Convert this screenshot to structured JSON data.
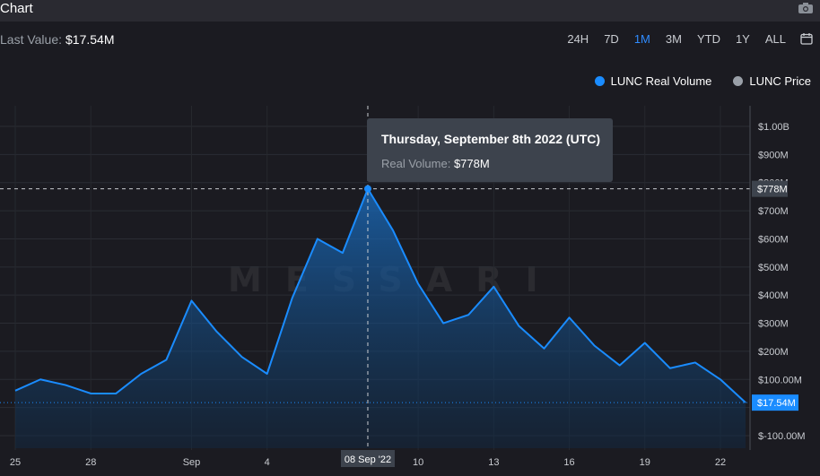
{
  "header": {
    "title": "Chart",
    "camera_icon": "camera-icon"
  },
  "summary": {
    "label": "Last Value:",
    "value": "$17.54M"
  },
  "ranges": [
    "24H",
    "7D",
    "1M",
    "3M",
    "YTD",
    "1Y",
    "ALL"
  ],
  "active_range": "1M",
  "calendar_icon": "calendar-icon",
  "legend": [
    {
      "label": "LUNC Real Volume",
      "color": "#1a8cff"
    },
    {
      "label": "LUNC Price",
      "color": "#9aa0a8"
    }
  ],
  "tooltip": {
    "date": "Thursday, September 8th 2022 (UTC)",
    "label": "Real Volume:",
    "value": "$778M"
  },
  "crosshair": {
    "x_label": "08 Sep '22",
    "y_label": "$778M"
  },
  "last_value_tag": "$17.54M",
  "watermark": "MESSARI",
  "chart_data": {
    "type": "area",
    "series": [
      {
        "name": "LUNC Real Volume",
        "color": "#1a8cff",
        "x": [
          "Aug 25",
          "Aug 26",
          "Aug 27",
          "Aug 28",
          "Aug 29",
          "Aug 30",
          "Aug 31",
          "Sep 1",
          "Sep 2",
          "Sep 3",
          "Sep 4",
          "Sep 5",
          "Sep 6",
          "Sep 7",
          "Sep 8",
          "Sep 9",
          "Sep 10",
          "Sep 11",
          "Sep 12",
          "Sep 13",
          "Sep 14",
          "Sep 15",
          "Sep 16",
          "Sep 17",
          "Sep 18",
          "Sep 19",
          "Sep 20",
          "Sep 21",
          "Sep 22",
          "Sep 23"
        ],
        "values": [
          60,
          100,
          80,
          50,
          50,
          120,
          170,
          380,
          270,
          180,
          120,
          390,
          600,
          550,
          778,
          630,
          440,
          300,
          330,
          430,
          290,
          210,
          320,
          220,
          150,
          230,
          140,
          160,
          100,
          17.54
        ]
      }
    ],
    "x_ticks": [
      "25",
      "28",
      "Sep",
      "4",
      "10",
      "13",
      "16",
      "19",
      "22"
    ],
    "y_ticks": [
      "$1.00B",
      "$900M",
      "$800M",
      "$700M",
      "$600M",
      "$500M",
      "$400M",
      "$300M",
      "$200M",
      "$100.00M",
      "$-100.00M"
    ],
    "ylim": [
      -100,
      1000
    ],
    "y_unit": "millions USD",
    "grid": true,
    "legend_position": "top-right"
  }
}
